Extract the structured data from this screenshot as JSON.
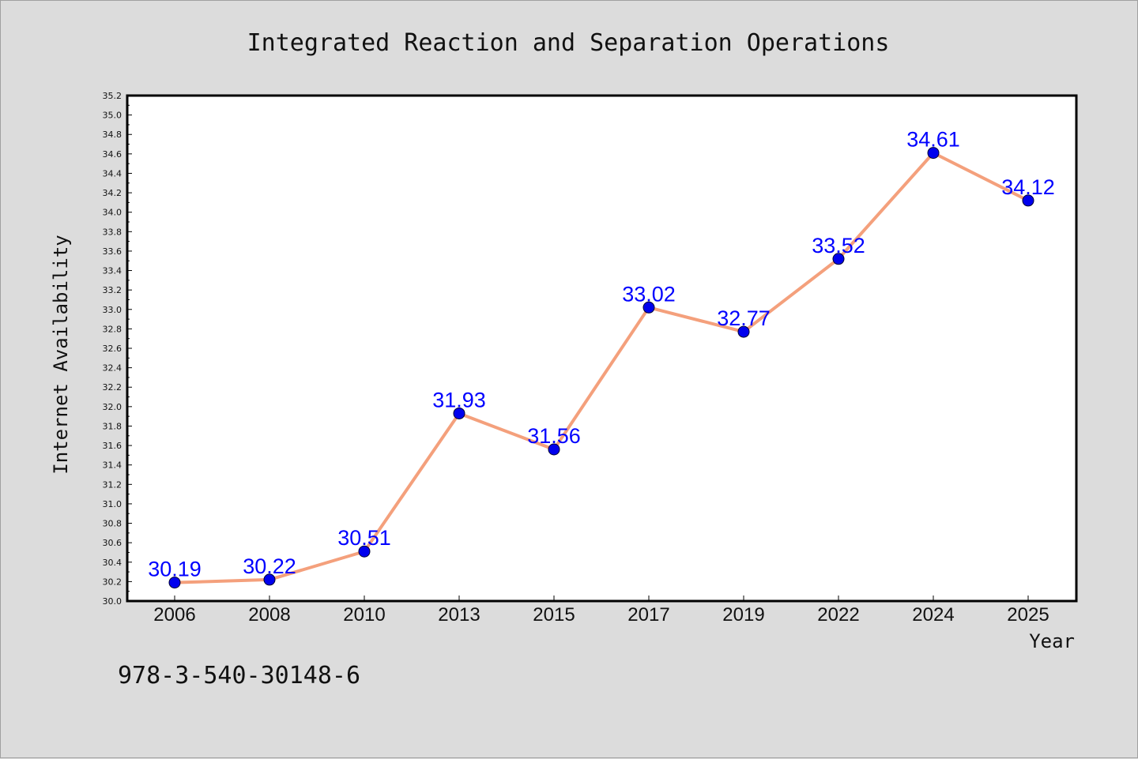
{
  "chart_data": {
    "type": "line",
    "title": "Integrated Reaction and Separation Operations",
    "xlabel": "Year",
    "ylabel": "Internet Availability",
    "categories": [
      "2006",
      "2008",
      "2010",
      "2013",
      "2015",
      "2017",
      "2019",
      "2022",
      "2024",
      "2025"
    ],
    "series": [
      {
        "values": [
          30.19,
          30.22,
          30.51,
          31.93,
          31.56,
          33.02,
          32.77,
          33.52,
          34.61,
          34.12
        ],
        "labels": [
          "30.19",
          "30.22",
          "30.51",
          "31.93",
          "31.56",
          "33.02",
          "32.77",
          "33.52",
          "34.61",
          "34.12"
        ],
        "line_color": "#f4a07c",
        "marker_color": "#0000ee"
      }
    ],
    "ylim": [
      30.0,
      35.2
    ],
    "yticks": [
      "30.0",
      "30.2",
      "30.4",
      "30.6",
      "30.8",
      "31.0",
      "31.2",
      "31.4",
      "31.6",
      "31.8",
      "32.0",
      "32.2",
      "32.4",
      "32.6",
      "32.8",
      "33.0",
      "33.2",
      "33.4",
      "33.6",
      "33.8",
      "34.0",
      "34.2",
      "34.4",
      "34.6",
      "34.8",
      "35.0",
      "35.2"
    ],
    "grid": false,
    "legend": "none"
  },
  "footer": {
    "text": "978-3-540-30148-6"
  },
  "colors": {
    "background": "#dcdcdc",
    "plot_background": "#ffffff",
    "label_color": "#0000ff"
  }
}
